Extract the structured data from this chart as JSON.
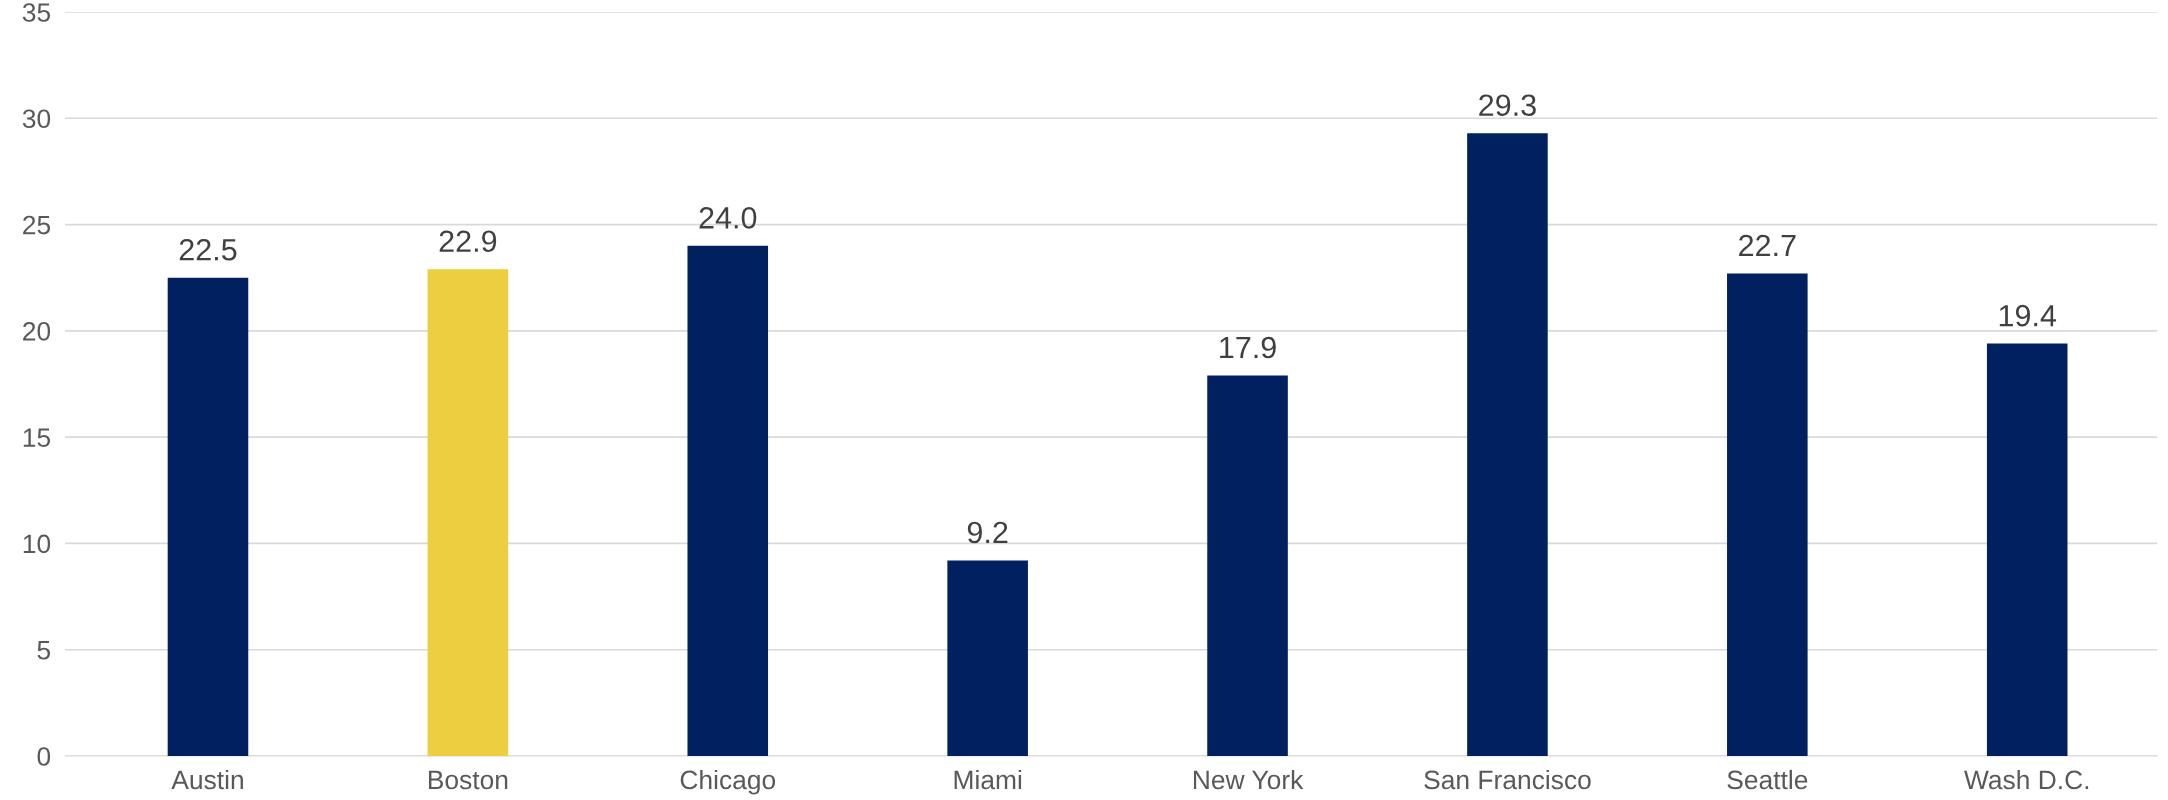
{
  "chart_data": {
    "type": "bar",
    "categories": [
      "Austin",
      "Boston",
      "Chicago",
      "Miami",
      "New York",
      "San Francisco",
      "Seattle",
      "Wash D.C."
    ],
    "values": [
      22.5,
      22.9,
      24.0,
      9.2,
      17.9,
      29.3,
      22.7,
      19.4
    ],
    "colors": [
      "#002060",
      "#ecce3e",
      "#002060",
      "#002060",
      "#002060",
      "#002060",
      "#002060",
      "#002060"
    ],
    "value_labels": [
      "22.5",
      "22.9",
      "24.0",
      "9.2",
      "17.9",
      "29.3",
      "22.7",
      "19.4"
    ],
    "ylim": [
      0,
      35
    ],
    "yticks": [
      0,
      5,
      10,
      15,
      20,
      25,
      30,
      35
    ],
    "grid": "y"
  }
}
